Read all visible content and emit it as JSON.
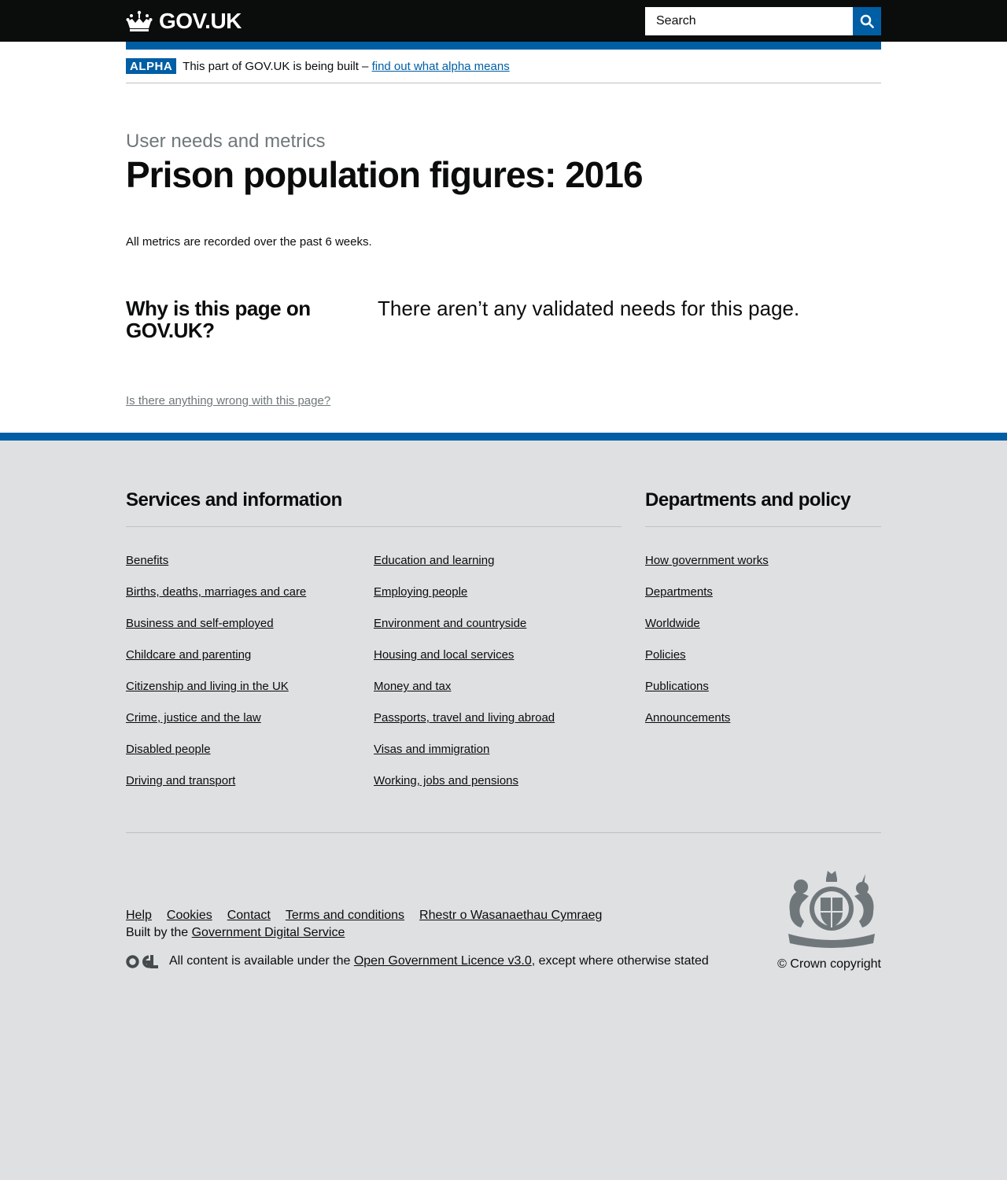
{
  "header": {
    "logo_text": "GOV.UK",
    "search_placeholder": "Search"
  },
  "phase": {
    "tag": "ALPHA",
    "text": "This part of GOV.UK is being built –",
    "link": "find out what alpha means"
  },
  "page": {
    "caption": "User needs and metrics",
    "title": "Prison population figures: 2016",
    "intro": "All metrics are recorded over the past 6 weeks.",
    "needs_heading": "Why is this page on GOV.UK?",
    "needs_text": "There aren’t any validated needs for this page.",
    "report_link": "Is there anything wrong with this page?"
  },
  "footer": {
    "services_heading": "Services and information",
    "services_col1": [
      "Benefits",
      "Births, deaths, marriages and care",
      "Business and self-employed",
      "Childcare and parenting",
      "Citizenship and living in the UK",
      "Crime, justice and the law",
      "Disabled people",
      "Driving and transport"
    ],
    "services_col2": [
      "Education and learning",
      "Employing people",
      "Environment and countryside",
      "Housing and local services",
      "Money and tax",
      "Passports, travel and living abroad",
      "Visas and immigration",
      "Working, jobs and pensions"
    ],
    "departments_heading": "Departments and policy",
    "departments": [
      "How government works",
      "Departments",
      "Worldwide",
      "Policies",
      "Publications",
      "Announcements"
    ],
    "meta_links": [
      "Help",
      "Cookies",
      "Contact",
      "Terms and conditions",
      "Rhestr o Wasanaethau Cymraeg"
    ],
    "built_by": "Built by the",
    "built_by_link": "Government Digital Service",
    "licence_prefix": "All content is available under the",
    "licence_link": "Open Government Licence v3.0",
    "licence_suffix": ", except where otherwise stated",
    "copyright": "© Crown copyright"
  },
  "colors": {
    "brand_blue": "#005ea5",
    "header_black": "#0b0c0c",
    "footer_grey": "#dee0e2",
    "secondary_text": "#6f777b"
  }
}
